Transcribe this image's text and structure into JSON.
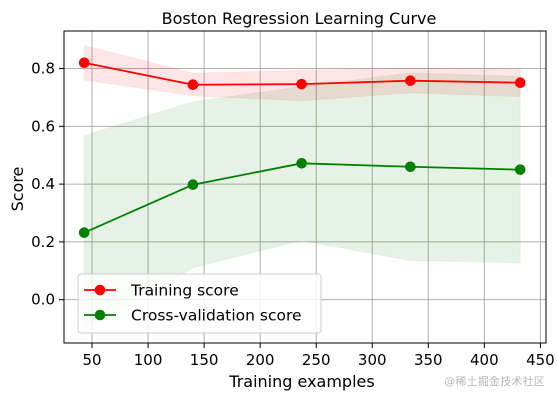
{
  "chart_data": {
    "type": "line",
    "title": "Boston Regression Learning Curve",
    "xlabel": "Training examples",
    "ylabel": "Score",
    "xlim": [
      25,
      455
    ],
    "ylim": [
      -0.15,
      0.93
    ],
    "xticks": [
      50,
      100,
      150,
      200,
      250,
      300,
      350,
      400,
      450
    ],
    "yticks": [
      0.0,
      0.2,
      0.4,
      0.6,
      0.8
    ],
    "x": [
      43,
      140,
      237,
      334,
      432
    ],
    "grid": true,
    "legend_position": "lower-left",
    "series": [
      {
        "name": "Training score",
        "color": "#ff0000",
        "fill_color": "#ff0000",
        "values": [
          0.82,
          0.744,
          0.746,
          0.758,
          0.751
        ],
        "lower": [
          0.76,
          0.706,
          0.688,
          0.716,
          0.703
        ],
        "upper": [
          0.88,
          0.784,
          0.794,
          0.802,
          0.797
        ]
      },
      {
        "name": "Cross-validation score",
        "color": "#008000",
        "fill_color": "#008000",
        "values": [
          0.232,
          0.398,
          0.472,
          0.46,
          0.45
        ],
        "lower": [
          -0.105,
          0.11,
          0.205,
          0.135,
          0.128
        ],
        "upper": [
          0.568,
          0.685,
          0.738,
          0.785,
          0.773
        ]
      }
    ]
  },
  "watermark": "@稀土掘金技术社区"
}
